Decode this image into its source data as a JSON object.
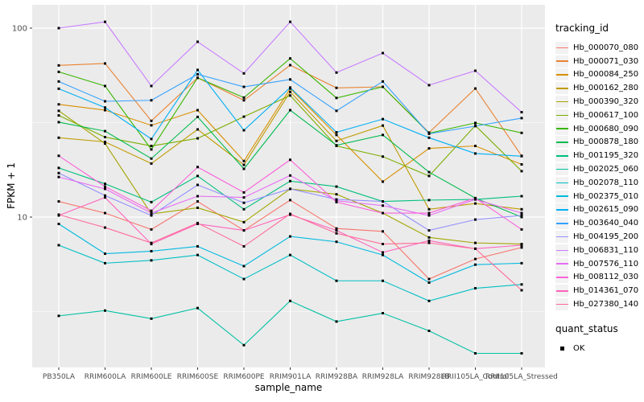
{
  "colors": {
    "panel_bg": "#EBEBEB",
    "grid": "#FFFFFF",
    "tick_text": "#4D4D4D",
    "axis_title_text": "#000000",
    "point": "#000000",
    "legend_key_bg": "#F2F2F2",
    "page_bg": "#FFFFFF"
  },
  "axes": {
    "y": {
      "title": "FPKM + 1",
      "scale": "log10",
      "ticks": [
        {
          "label": "100",
          "value": 100
        },
        {
          "label": "10",
          "value": 10
        }
      ],
      "minor_gridlines": [
        31.623,
        3.1623
      ]
    },
    "x": {
      "title": "sample_name"
    }
  },
  "legend": {
    "tracking_title": "tracking_id",
    "quant_title": "quant_status",
    "quant_label": "OK"
  },
  "chart_data": {
    "type": "line",
    "title": "",
    "xlabel": "sample_name",
    "ylabel": "FPKM + 1",
    "y_scale": "log10",
    "ylim": [
      1.6,
      133
    ],
    "grid": "on",
    "legend_position": "right",
    "point_marker": "filled-black-square",
    "quant_status": "OK",
    "x_categories": [
      "PB350LA",
      "RRIM600LA",
      "RRIM600LE",
      "RRIM600SE",
      "RRIM600PE",
      "RRIM901LA",
      "RRIM928BA",
      "RRIM928LA",
      "RRIM928LB",
      "RRII105LA_Control",
      "RRII105LA_Stressed"
    ],
    "series": [
      {
        "name": "Hb_000070_080",
        "color": "#F8766D",
        "values": [
          12.1,
          10.5,
          8.6,
          12.1,
          8.5,
          12.3,
          8.7,
          8.4,
          4.7,
          6.0,
          6.9
        ]
      },
      {
        "name": "Hb_000071_030",
        "color": "#EA8331",
        "values": [
          63.5,
          65.0,
          32.3,
          54.6,
          41.5,
          63.7,
          48.3,
          48.9,
          28.0,
          47.9,
          21.1
        ]
      },
      {
        "name": "Hb_000084_250",
        "color": "#D89000",
        "values": [
          39.5,
          36.8,
          30.6,
          36.8,
          19.8,
          47.9,
          27.2,
          15.4,
          23.1,
          23.8,
          19.0
        ]
      },
      {
        "name": "Hb_000162_280",
        "color": "#C09B00",
        "values": [
          26.3,
          25.0,
          19.2,
          29.1,
          18.9,
          46.0,
          25.3,
          30.5,
          11.0,
          11.8,
          11.0
        ]
      },
      {
        "name": "Hb_000390_320",
        "color": "#A3A500",
        "values": [
          36.5,
          24.5,
          10.4,
          11.2,
          9.4,
          14.1,
          13.2,
          10.5,
          7.8,
          7.3,
          7.2
        ]
      },
      {
        "name": "Hb_000617_100",
        "color": "#7CAE00",
        "values": [
          34.5,
          26.5,
          23.8,
          26.1,
          34.0,
          44.0,
          23.8,
          20.9,
          16.5,
          30.5,
          17.5
        ]
      },
      {
        "name": "Hb_000680_090",
        "color": "#39B600",
        "values": [
          58.7,
          49.4,
          22.8,
          54.6,
          42.9,
          69.1,
          42.7,
          48.9,
          27.8,
          31.5,
          27.9
        ]
      },
      {
        "name": "Hb_000878_180",
        "color": "#00BB4E",
        "values": [
          31.8,
          28.5,
          20.4,
          33.9,
          18.0,
          36.8,
          24.0,
          27.2,
          17.3,
          12.6,
          10.0
        ]
      },
      {
        "name": "Hb_001195_320",
        "color": "#00BF7D",
        "values": [
          18.2,
          15.0,
          12.0,
          16.5,
          11.0,
          15.5,
          14.5,
          12.1,
          12.3,
          12.4,
          12.9
        ]
      },
      {
        "name": "Hb_002025_060",
        "color": "#00C1A3",
        "values": [
          3.0,
          3.2,
          2.9,
          3.3,
          2.1,
          3.6,
          2.8,
          3.1,
          2.5,
          1.9,
          1.9
        ]
      },
      {
        "name": "Hb_002078_110",
        "color": "#00BFC4",
        "values": [
          7.1,
          5.7,
          5.9,
          6.3,
          4.7,
          6.3,
          4.6,
          4.6,
          3.6,
          4.2,
          4.4
        ]
      },
      {
        "name": "Hb_002375_010",
        "color": "#00BAE0",
        "values": [
          9.2,
          6.4,
          6.6,
          7.0,
          5.5,
          7.9,
          7.4,
          6.3,
          4.5,
          5.6,
          5.7
        ]
      },
      {
        "name": "Hb_002615_090",
        "color": "#00B0F6",
        "values": [
          47.8,
          38.0,
          25.9,
          60.1,
          28.8,
          48.5,
          28.1,
          33.0,
          26.3,
          21.7,
          21.0
        ]
      },
      {
        "name": "Hb_003640_040",
        "color": "#35A2FF",
        "values": [
          52.2,
          41.0,
          41.5,
          57.0,
          48.9,
          53.5,
          36.5,
          52.2,
          27.6,
          30.3,
          33.4
        ]
      },
      {
        "name": "Hb_004195_200",
        "color": "#9590FF",
        "values": [
          17.1,
          13.0,
          10.2,
          14.8,
          11.9,
          14.1,
          12.4,
          12.1,
          8.5,
          9.7,
          10.2
        ]
      },
      {
        "name": "Hb_006831_110",
        "color": "#C77CFF",
        "values": [
          100,
          108,
          49.4,
          84.7,
          57.6,
          108,
          58.2,
          73.8,
          49.9,
          59.5,
          35.9
        ]
      },
      {
        "name": "Hb_007576_110",
        "color": "#E76BF3",
        "values": [
          16.3,
          14.1,
          10.5,
          12.9,
          12.7,
          16.6,
          12.2,
          11.5,
          10.2,
          12.4,
          10.5
        ]
      },
      {
        "name": "Hb_008112_030",
        "color": "#FA62DB",
        "values": [
          21.1,
          14.5,
          10.8,
          18.4,
          13.5,
          20.1,
          12.0,
          10.5,
          10.5,
          12.6,
          8.6
        ]
      },
      {
        "name": "Hb_014361_070",
        "color": "#FF62BC",
        "values": [
          10.2,
          12.7,
          7.2,
          9.2,
          8.5,
          10.3,
          8.5,
          6.5,
          7.5,
          6.8,
          7.1
        ]
      },
      {
        "name": "Hb_027380_140",
        "color": "#FF6A98",
        "values": [
          10.3,
          8.8,
          7.3,
          9.3,
          7.0,
          10.4,
          8.2,
          7.2,
          7.3,
          6.8,
          4.1
        ]
      }
    ]
  }
}
